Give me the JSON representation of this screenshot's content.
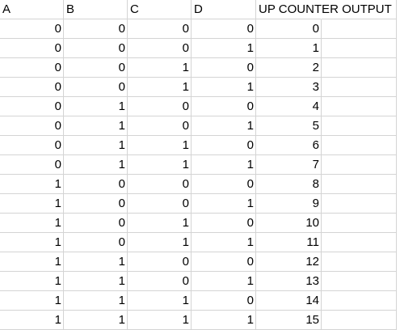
{
  "header": {
    "a": "A",
    "b": "B",
    "c": "C",
    "d": "D",
    "output": "UP COUNTER OUTPUT"
  },
  "rows": [
    {
      "a": "0",
      "b": "0",
      "c": "0",
      "d": "0",
      "out": "0"
    },
    {
      "a": "0",
      "b": "0",
      "c": "0",
      "d": "1",
      "out": "1"
    },
    {
      "a": "0",
      "b": "0",
      "c": "1",
      "d": "0",
      "out": "2"
    },
    {
      "a": "0",
      "b": "0",
      "c": "1",
      "d": "1",
      "out": "3"
    },
    {
      "a": "0",
      "b": "1",
      "c": "0",
      "d": "0",
      "out": "4"
    },
    {
      "a": "0",
      "b": "1",
      "c": "0",
      "d": "1",
      "out": "5"
    },
    {
      "a": "0",
      "b": "1",
      "c": "1",
      "d": "0",
      "out": "6"
    },
    {
      "a": "0",
      "b": "1",
      "c": "1",
      "d": "1",
      "out": "7"
    },
    {
      "a": "1",
      "b": "0",
      "c": "0",
      "d": "0",
      "out": "8"
    },
    {
      "a": "1",
      "b": "0",
      "c": "0",
      "d": "1",
      "out": "9"
    },
    {
      "a": "1",
      "b": "0",
      "c": "1",
      "d": "0",
      "out": "10"
    },
    {
      "a": "1",
      "b": "0",
      "c": "1",
      "d": "1",
      "out": "11"
    },
    {
      "a": "1",
      "b": "1",
      "c": "0",
      "d": "0",
      "out": "12"
    },
    {
      "a": "1",
      "b": "1",
      "c": "0",
      "d": "1",
      "out": "13"
    },
    {
      "a": "1",
      "b": "1",
      "c": "1",
      "d": "0",
      "out": "14"
    },
    {
      "a": "1",
      "b": "1",
      "c": "1",
      "d": "1",
      "out": "15"
    }
  ]
}
